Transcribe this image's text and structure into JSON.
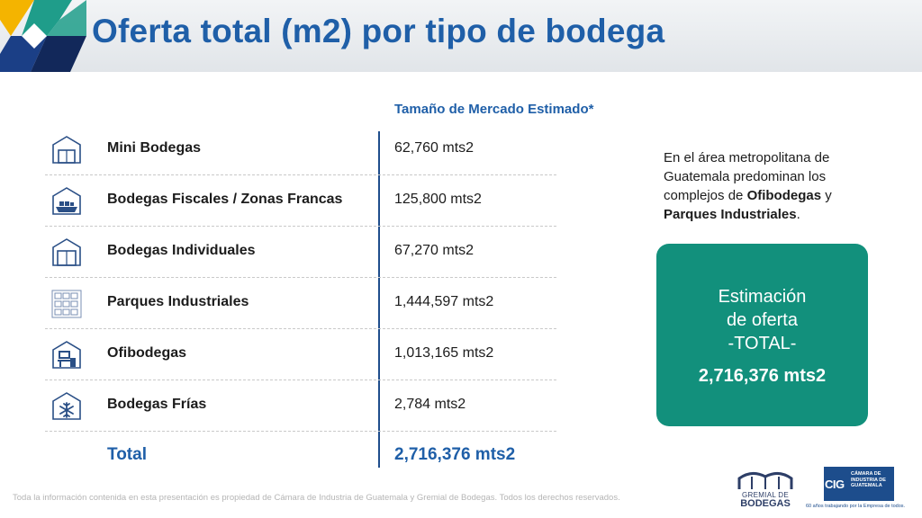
{
  "slide": {
    "title": "Oferta total (m2) por tipo de bodega",
    "column_header": "Tamaño de Mercado Estimado*"
  },
  "rows": [
    {
      "name": "Mini Bodegas",
      "value": "62,760 mts2",
      "icon": "mini-warehouse-icon"
    },
    {
      "name": "Bodegas Fiscales / Zonas Francas",
      "value": "125,800 mts2",
      "icon": "fiscal-warehouse-ship-icon"
    },
    {
      "name": "Bodegas Individuales",
      "value": "67,270 mts2",
      "icon": "individual-warehouse-icon"
    },
    {
      "name": "Parques Industriales",
      "value": "1,444,597 mts2",
      "icon": "industrial-park-icon"
    },
    {
      "name": "Ofibodegas",
      "value": "1,013,165 mts2",
      "icon": "office-warehouse-icon"
    },
    {
      "name": "Bodegas Frías",
      "value": "2,784 mts2",
      "icon": "cold-storage-snowflake-icon"
    }
  ],
  "total": {
    "label": "Total",
    "value": "2,716,376 mts2"
  },
  "note": {
    "part1": "En el área metropolitana de Guatemala predominan los complejos de ",
    "bold1": "Ofibodegas",
    "part2": " y ",
    "bold2": "Parques Industriales",
    "part3": "."
  },
  "card": {
    "line1": "Estimación",
    "line2": "de oferta",
    "line3": "-TOTAL-",
    "amount": "2,716,376 mts2"
  },
  "footer": {
    "disclaimer": "Toda la información contenida en esta presentación es propiedad de Cámara de Industria de Guatemala y Gremial de Bodegas. Todos los derechos reservados."
  },
  "logos": {
    "gremial_line1": "GREMIAL DE",
    "gremial_line2": "BODEGAS",
    "cig_letters": "CIG",
    "cig_name": "CÁMARA DE INDUSTRIA DE GUATEMALA",
    "cig_slogan": "60 años trabajando por la Empresa de todos."
  },
  "colors": {
    "title_blue": "#1f5fa8",
    "card_teal": "#12907c",
    "text_dark": "#1c1c1c"
  }
}
